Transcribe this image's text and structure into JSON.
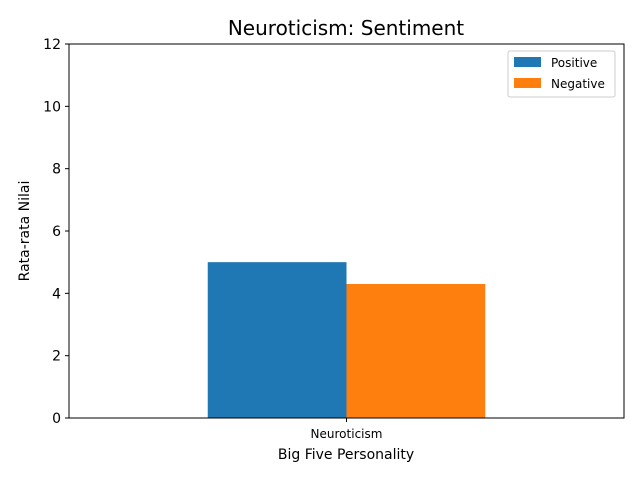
{
  "chart_data": {
    "type": "bar",
    "title": "Neuroticism: Sentiment",
    "xlabel": "Big Five Personality",
    "ylabel": "Rata-rata Nilai",
    "categories": [
      "Neuroticism"
    ],
    "series": [
      {
        "name": "Positive",
        "values": [
          5.0
        ],
        "color": "#1f77b4"
      },
      {
        "name": "Negative",
        "values": [
          4.3
        ],
        "color": "#ff7f0e"
      }
    ],
    "ylim": [
      0,
      12
    ],
    "yticks": [
      0,
      2,
      4,
      6,
      8,
      10,
      12
    ],
    "grid": false,
    "legend_position": "top-right"
  }
}
